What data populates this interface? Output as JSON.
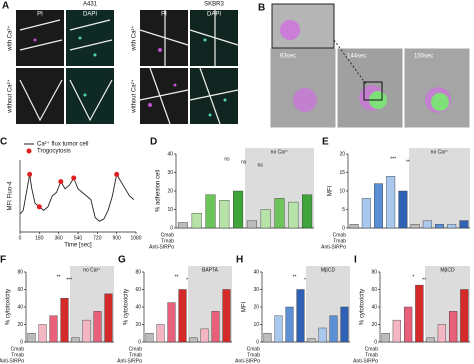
{
  "panels": {
    "a": {
      "label": "A",
      "cell_lines": [
        "A431",
        "SKBR3"
      ],
      "channels": [
        "PI",
        "DAPI"
      ],
      "conditions": [
        "with Ca²⁺",
        "without Ca²⁺"
      ]
    },
    "b": {
      "label": "B",
      "times": [
        "63sec",
        "144sec",
        "150sec"
      ]
    },
    "c": {
      "label": "C",
      "type": "line",
      "y_label": "MFI Fluo-4",
      "x_label": "Time [sec]",
      "series_name": "Ca²⁺ flux tumor cell",
      "color": "#222222",
      "x": [
        0,
        30,
        60,
        90,
        110,
        140,
        180,
        220,
        260,
        300,
        340,
        380,
        420,
        460,
        500,
        540,
        580,
        620,
        660,
        700,
        740,
        780,
        820,
        860,
        900,
        940,
        980,
        1020,
        1060
      ],
      "values": [
        0.25,
        0.3,
        0.55,
        0.8,
        0.6,
        0.4,
        0.35,
        0.3,
        0.35,
        0.5,
        0.55,
        0.7,
        0.6,
        0.65,
        0.75,
        0.6,
        0.55,
        0.5,
        0.45,
        0.2,
        0.15,
        0.18,
        0.3,
        0.5,
        0.8,
        0.7,
        0.6,
        0.5,
        0.45
      ],
      "events": {
        "name": "Trogocytosis",
        "color": "#e02020",
        "x": [
          90,
          180,
          380,
          500,
          900
        ],
        "values": [
          0.8,
          0.35,
          0.7,
          0.75,
          0.8
        ]
      },
      "xlim": [
        0,
        1080
      ],
      "xticks": [
        0,
        180,
        360,
        540,
        720,
        900,
        1080
      ],
      "ylim": [
        0,
        1
      ]
    },
    "d": {
      "label": "D",
      "type": "bar",
      "y_label": "% adhesion cell",
      "ylim": [
        0,
        40
      ],
      "yticks": [
        0,
        10,
        20,
        30,
        40
      ],
      "shaded": true,
      "values": [
        3,
        8,
        18,
        15,
        20,
        4,
        10,
        16,
        14,
        18
      ],
      "colors": [
        "#bbbbbb",
        "#b7e3a8",
        "#6cc45a",
        "#b7e3a8",
        "#3fa53a",
        "#bbbbbb",
        "#b7e3a8",
        "#6cc45a",
        "#b7e3a8",
        "#3fa53a"
      ],
      "annotations": [
        "no Ca²⁺",
        "ns",
        "ns",
        "ns"
      ]
    },
    "e": {
      "label": "E",
      "type": "bar",
      "y_label": "MFI",
      "ylim": [
        0,
        20
      ],
      "yticks": [
        0,
        5,
        10,
        15,
        20
      ],
      "shaded": true,
      "values": [
        1,
        8,
        12,
        14,
        10,
        1,
        2,
        1,
        1,
        2
      ],
      "colors": [
        "#bbbbbb",
        "#a9c8ee",
        "#5b8fd6",
        "#a9c8ee",
        "#2f62b5",
        "#bbbbbb",
        "#a9c8ee",
        "#5b8fd6",
        "#a9c8ee",
        "#2f62b5"
      ],
      "annotations": [
        "no Ca²⁺",
        "***",
        "**"
      ]
    },
    "f": {
      "label": "F",
      "type": "bar",
      "y_label": "% cytotoxicity",
      "ylim": [
        0,
        80
      ],
      "yticks": [
        0,
        20,
        40,
        60,
        80
      ],
      "shaded": true,
      "values": [
        10,
        20,
        30,
        50,
        5,
        25,
        35,
        55
      ],
      "colors": [
        "#bbbbbb",
        "#f4b6c2",
        "#e8607a",
        "#d42a2a",
        "#bbbbbb",
        "#f4b6c2",
        "#e8607a",
        "#d42a2a"
      ],
      "annotations": [
        "no Ca²⁺",
        "**",
        "***"
      ]
    },
    "g": {
      "label": "G",
      "type": "bar",
      "y_label": "% cytotoxicity",
      "ylim": [
        0,
        80
      ],
      "yticks": [
        0,
        20,
        40,
        60,
        80
      ],
      "shaded": true,
      "values": [
        10,
        20,
        45,
        60,
        5,
        15,
        35,
        60
      ],
      "colors": [
        "#bbbbbb",
        "#f4b6c2",
        "#e8607a",
        "#d42a2a",
        "#bbbbbb",
        "#f4b6c2",
        "#e8607a",
        "#d42a2a"
      ],
      "annotations": [
        "BAPTA",
        "**",
        "*"
      ]
    },
    "h": {
      "label": "H",
      "type": "bar",
      "y_label": "MFI",
      "ylim": [
        0,
        40
      ],
      "yticks": [
        0,
        10,
        20,
        30,
        40
      ],
      "shaded": true,
      "values": [
        5,
        15,
        20,
        30,
        2,
        8,
        15,
        20
      ],
      "colors": [
        "#bbbbbb",
        "#a9c8ee",
        "#5b8fd6",
        "#2f62b5",
        "#bbbbbb",
        "#a9c8ee",
        "#5b8fd6",
        "#2f62b5"
      ],
      "annotations": [
        "MβCD",
        "**",
        "*"
      ]
    },
    "i": {
      "label": "I",
      "type": "bar",
      "y_label": "% cytotoxicity",
      "ylim": [
        0,
        80
      ],
      "yticks": [
        0,
        20,
        40,
        60,
        80
      ],
      "shaded": true,
      "values": [
        10,
        25,
        40,
        65,
        5,
        20,
        35,
        60
      ],
      "colors": [
        "#bbbbbb",
        "#f4b6c2",
        "#e8607a",
        "#d42a2a",
        "#bbbbbb",
        "#f4b6c2",
        "#e8607a",
        "#d42a2a"
      ],
      "annotations": [
        "MβCD",
        "*",
        "**"
      ]
    }
  },
  "treatment_rows": [
    "Cmab",
    "Tmab",
    "Anti-SIRPα"
  ]
}
